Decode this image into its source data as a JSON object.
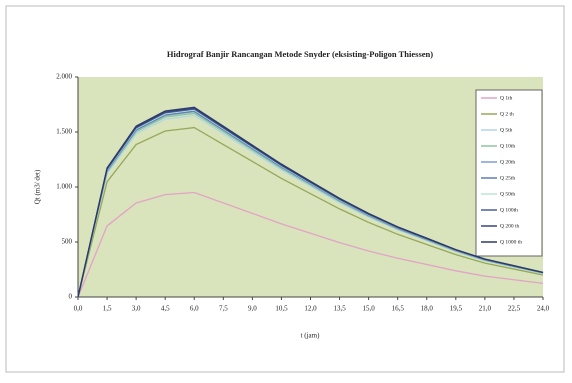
{
  "chart_data": {
    "type": "line",
    "title": "Hidrograf Banjir Rancangan Metode Snyder (eksisting-Poligon Thiessen)",
    "x_label": "t (jam)",
    "y_label": "Qt (m3/ det)",
    "x": [
      0,
      1.5,
      3,
      4.5,
      6,
      7.5,
      9,
      10.5,
      12,
      13.5,
      15,
      16.5,
      18,
      19.5,
      21,
      22.5,
      24
    ],
    "xlim": [
      0,
      24
    ],
    "xticks": [
      {
        "value": 0,
        "label": "0,0"
      },
      {
        "value": 1.5,
        "label": "1,5"
      },
      {
        "value": 3,
        "label": "3,0"
      },
      {
        "value": 4.5,
        "label": "4,5"
      },
      {
        "value": 6,
        "label": "6,0"
      },
      {
        "value": 7.5,
        "label": "7,5"
      },
      {
        "value": 9,
        "label": "9,0"
      },
      {
        "value": 10.5,
        "label": "10,5"
      },
      {
        "value": 12,
        "label": "12,0"
      },
      {
        "value": 13.5,
        "label": "13,5"
      },
      {
        "value": 15,
        "label": "15,0"
      },
      {
        "value": 16.5,
        "label": "16,5"
      },
      {
        "value": 18,
        "label": "18,0"
      },
      {
        "value": 19.5,
        "label": "19,5"
      },
      {
        "value": 21,
        "label": "21,0"
      },
      {
        "value": 22.5,
        "label": "22,5"
      },
      {
        "value": 24,
        "label": "24,0"
      }
    ],
    "ylim": [
      0,
      2000
    ],
    "yticks": [
      0,
      500,
      {
        "value": 1000,
        "label": "1.000"
      },
      {
        "value": 1500,
        "label": "1.500"
      },
      {
        "value": 2000,
        "label": "2.000"
      }
    ],
    "legend": "right",
    "series": [
      {
        "name": "Q 1th",
        "color": "#e3a3c6",
        "values": [
          0,
          646,
          855,
          931,
          950,
          855,
          760,
          665,
          580,
          494,
          418,
          352,
          295,
          238,
          190,
          157,
          124
        ]
      },
      {
        "name": "Q 2 th",
        "color": "#97a85a",
        "values": [
          0,
          1047,
          1386,
          1509,
          1540,
          1386,
          1232,
          1078,
          939,
          801,
          678,
          570,
          477,
          385,
          308,
          254,
          200
        ]
      },
      {
        "name": "Q 5th",
        "color": "#b0d6e6",
        "values": [
          0,
          1122,
          1485,
          1617,
          1650,
          1485,
          1320,
          1155,
          1007,
          858,
          726,
          611,
          512,
          413,
          330,
          272,
          215
        ]
      },
      {
        "name": "Q 10th",
        "color": "#8cc59e",
        "values": [
          0,
          1136,
          1503,
          1637,
          1670,
          1503,
          1336,
          1169,
          1019,
          868,
          735,
          618,
          518,
          418,
          334,
          276,
          217
        ]
      },
      {
        "name": "Q 20th",
        "color": "#7a9fcf",
        "values": [
          0,
          1146,
          1517,
          1651,
          1685,
          1517,
          1348,
          1180,
          1028,
          876,
          741,
          623,
          522,
          421,
          337,
          278,
          219
        ]
      },
      {
        "name": "Q 25th",
        "color": "#5b7fb9",
        "values": [
          0,
          1149,
          1521,
          1656,
          1690,
          1521,
          1352,
          1183,
          1031,
          879,
          744,
          625,
          524,
          423,
          338,
          279,
          220
        ]
      },
      {
        "name": "Q 50th",
        "color": "#bfe3d6",
        "values": [
          0,
          1156,
          1530,
          1666,
          1700,
          1530,
          1360,
          1190,
          1037,
          884,
          748,
          629,
          527,
          425,
          340,
          281,
          221
        ]
      },
      {
        "name": "Q 100th",
        "color": "#4a5e9a",
        "values": [
          0,
          1161,
          1537,
          1674,
          1708,
          1537,
          1366,
          1196,
          1042,
          888,
          752,
          632,
          529,
          427,
          342,
          282,
          222
        ]
      },
      {
        "name": "Q 200 th",
        "color": "#37477e",
        "values": [
          0,
          1166,
          1544,
          1681,
          1715,
          1544,
          1372,
          1201,
          1046,
          892,
          755,
          635,
          532,
          429,
          343,
          283,
          223
        ]
      },
      {
        "name": "Q 1000 th",
        "color": "#2b3a67",
        "values": [
          0,
          1173,
          1553,
          1691,
          1725,
          1553,
          1380,
          1208,
          1052,
          897,
          759,
          638,
          535,
          431,
          345,
          285,
          224
        ]
      }
    ]
  }
}
